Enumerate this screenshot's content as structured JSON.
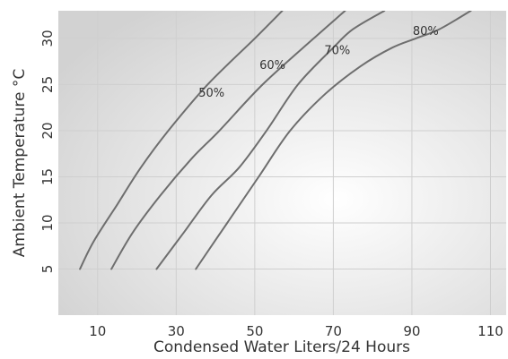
{
  "chart_data": {
    "type": "line",
    "title": "",
    "xlabel": "Condensed Water Liters/24 Hours",
    "ylabel": "Ambient Temperature °C",
    "xlim": [
      0,
      114
    ],
    "ylim": [
      0,
      33
    ],
    "x_ticks": [
      10,
      30,
      50,
      70,
      90,
      110
    ],
    "y_ticks": [
      5,
      10,
      15,
      20,
      25,
      30
    ],
    "grid": true,
    "legend": "none",
    "colors": {
      "line": "#6e6e6e",
      "grid": "#cfcfcf",
      "plot_bg_center": "#ffffff",
      "plot_bg_edge": "#d2d2d2",
      "text": "#333333"
    },
    "series": [
      {
        "name": "50%",
        "points": [
          [
            5.5,
            5
          ],
          [
            9,
            8
          ],
          [
            15,
            12
          ],
          [
            21,
            16
          ],
          [
            28,
            20
          ],
          [
            38,
            25
          ],
          [
            50,
            30
          ],
          [
            57,
            33
          ]
        ]
      },
      {
        "name": "60%",
        "points": [
          [
            13.5,
            5
          ],
          [
            19,
            9
          ],
          [
            26,
            13
          ],
          [
            34,
            17
          ],
          [
            41,
            20
          ],
          [
            52,
            25
          ],
          [
            65,
            30
          ],
          [
            73,
            33
          ]
        ]
      },
      {
        "name": "70%",
        "points": [
          [
            25,
            5
          ],
          [
            32,
            9
          ],
          [
            39,
            13
          ],
          [
            46,
            16
          ],
          [
            53,
            20
          ],
          [
            61,
            25
          ],
          [
            70,
            29
          ],
          [
            75,
            31
          ],
          [
            83,
            33
          ]
        ]
      },
      {
        "name": "80%",
        "points": [
          [
            35,
            5
          ],
          [
            43,
            10
          ],
          [
            51,
            15
          ],
          [
            59,
            20
          ],
          [
            68,
            24
          ],
          [
            77,
            27
          ],
          [
            85,
            29
          ],
          [
            91,
            30
          ],
          [
            97,
            31
          ],
          [
            105,
            33
          ]
        ]
      }
    ],
    "curve_labels": [
      {
        "text": "50%",
        "x": 39,
        "y": 23.7
      },
      {
        "text": "60%",
        "x": 54.5,
        "y": 26.7
      },
      {
        "text": "70%",
        "x": 71,
        "y": 28.3
      },
      {
        "text": "80%",
        "x": 93.5,
        "y": 30.4
      }
    ]
  }
}
